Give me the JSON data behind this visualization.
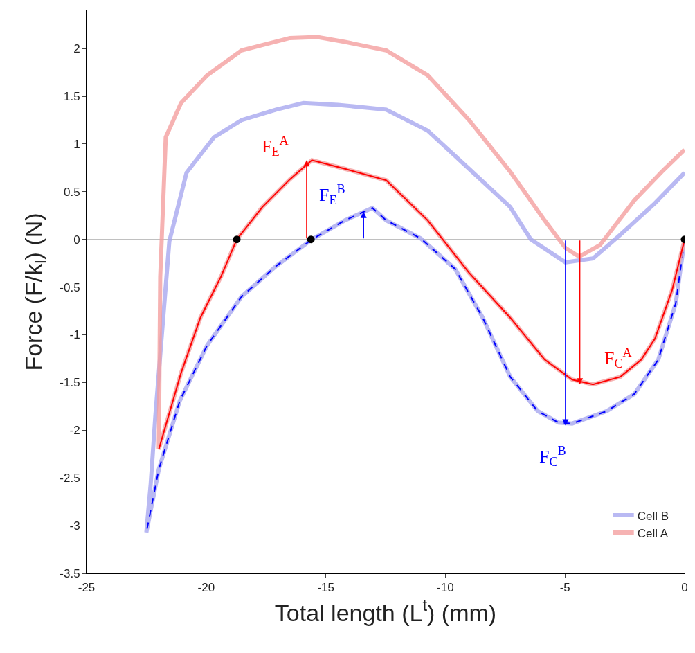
{
  "chart_data": {
    "type": "line",
    "xlabel": "Total length (L$^{t}$) (mm)",
    "ylabel": "Force (F/k$_{l}$) (N)",
    "xlim": [
      -25,
      0
    ],
    "xticks": [
      -25,
      -20,
      -15,
      -10,
      -5,
      0
    ],
    "ylim": [
      -3.5,
      2.4
    ],
    "yticks": [
      -3.5,
      -3,
      -2.5,
      -2,
      -1.5,
      -1,
      -0.5,
      0,
      0.5,
      1,
      1.5,
      2
    ],
    "grid": false,
    "legend": "bottom right",
    "series": [
      {
        "name": "Cell B",
        "color": "#a8a8f0",
        "line_style": "solid",
        "x": [
          0,
          -0.37,
          -1.1,
          -2.1,
          -3.26,
          -4.7,
          -5.27,
          -6.14,
          -7.29,
          -8.44,
          -9.59,
          -11.03,
          -12.47,
          -13.05,
          -14.2,
          -15.58,
          -17.08,
          -18.52,
          -19.96,
          -21.1,
          -21.98,
          -22.5,
          -22.32,
          -22.12,
          -21.54,
          -20.82,
          -19.67,
          -18.52,
          -17.08,
          -15.93,
          -14.49,
          -12.47,
          -10.74,
          -9.01,
          -7.29,
          -6.43,
          -4.98,
          -3.83,
          -2.68,
          -1.24,
          0
        ],
        "values": [
          0,
          -0.67,
          -1.26,
          -1.62,
          -1.8,
          -1.93,
          -1.92,
          -1.8,
          -1.44,
          -0.82,
          -0.31,
          0.01,
          0.2,
          0.33,
          0.2,
          0,
          -0.28,
          -0.6,
          -1.11,
          -1.69,
          -2.41,
          -3.07,
          -2.57,
          -1.84,
          -0.02,
          0.7,
          1.07,
          1.25,
          1.36,
          1.43,
          1.41,
          1.36,
          1.14,
          0.74,
          0.34,
          0,
          -0.24,
          -0.2,
          0.05,
          0.38,
          0.7
        ]
      },
      {
        "color": "#0000ff",
        "line_style": "dashed",
        "x": [
          0,
          -0.37,
          -1.1,
          -2.1,
          -3.26,
          -4.7,
          -5.27,
          -6.14,
          -7.29,
          -8.44,
          -9.59,
          -11.03,
          -12.47,
          -13.05,
          -14.2,
          -15.58,
          -17.08,
          -18.52,
          -19.96,
          -21.1,
          -21.98,
          -22.5
        ],
        "values": [
          0,
          -0.67,
          -1.26,
          -1.62,
          -1.8,
          -1.93,
          -1.92,
          -1.8,
          -1.44,
          -0.82,
          -0.31,
          0.01,
          0.2,
          0.33,
          0.2,
          0,
          -0.28,
          -0.6,
          -1.11,
          -1.69,
          -2.41,
          -3.07
        ]
      },
      {
        "name": "Cell A",
        "color": "#f4a0a0",
        "line_style": "solid",
        "x": [
          0,
          -0.52,
          -1.24,
          -1.81,
          -2.68,
          -3.83,
          -4.7,
          -5.85,
          -7.29,
          -9.01,
          -10.74,
          -12.47,
          -14.2,
          -15.58,
          -16.5,
          -17.65,
          -18.72,
          -19.38,
          -20.24,
          -21.05,
          -21.98,
          -21.92,
          -21.69,
          -21.05,
          -19.96,
          -18.52,
          -16.5,
          -15.35,
          -14.2,
          -12.47,
          -10.74,
          -9.01,
          -7.29,
          -5.85,
          -4.98,
          -4.41,
          -3.54,
          -2.1,
          -0.95,
          0
        ],
        "values": [
          0,
          -0.53,
          -1.04,
          -1.26,
          -1.44,
          -1.52,
          -1.47,
          -1.26,
          -0.82,
          -0.35,
          0.2,
          0.62,
          0.74,
          0.83,
          0.63,
          0.34,
          0,
          -0.39,
          -0.82,
          -1.4,
          -2.2,
          -0.39,
          1.07,
          1.43,
          1.72,
          1.98,
          2.11,
          2.12,
          2.07,
          1.98,
          1.72,
          1.25,
          0.71,
          0.2,
          -0.09,
          -0.18,
          -0.06,
          0.41,
          0.71,
          0.94
        ]
      },
      {
        "color": "#ff0000",
        "line_style": "solid",
        "x": [
          0,
          -0.52,
          -1.24,
          -1.81,
          -2.68,
          -3.83,
          -4.7,
          -5.85,
          -7.29,
          -9.01,
          -10.74,
          -12.47,
          -14.2,
          -15.58,
          -16.5,
          -17.65,
          -18.72,
          -19.38,
          -20.24,
          -21.05,
          -21.98
        ],
        "values": [
          0,
          -0.53,
          -1.04,
          -1.26,
          -1.44,
          -1.52,
          -1.47,
          -1.26,
          -0.82,
          -0.35,
          0.2,
          0.62,
          0.74,
          0.83,
          0.63,
          0.34,
          0,
          -0.39,
          -0.82,
          -1.4,
          -2.2
        ]
      },
      {
        "type": "scatter",
        "marker": "circle",
        "color": "#000000",
        "x": [
          -18.72,
          -15.62,
          0
        ],
        "values": [
          0,
          0,
          0
        ]
      }
    ],
    "ref_lines": [
      {
        "axis": "y",
        "value": 0,
        "color": "#b0b0b0"
      }
    ],
    "annotations": [
      {
        "text": "F$_{E}$$^{A}$",
        "x": -15.8,
        "y": 0.83
      },
      {
        "text": "F$_{E}$$^{B}$",
        "x": -13.42,
        "y": 0.29
      },
      {
        "text": "F$_{C}$$^{A}$",
        "x": -4.38,
        "y": -1.52
      },
      {
        "text": "F$_{C}$$^{B}$",
        "x": -4.98,
        "y": -1.95
      }
    ]
  }
}
